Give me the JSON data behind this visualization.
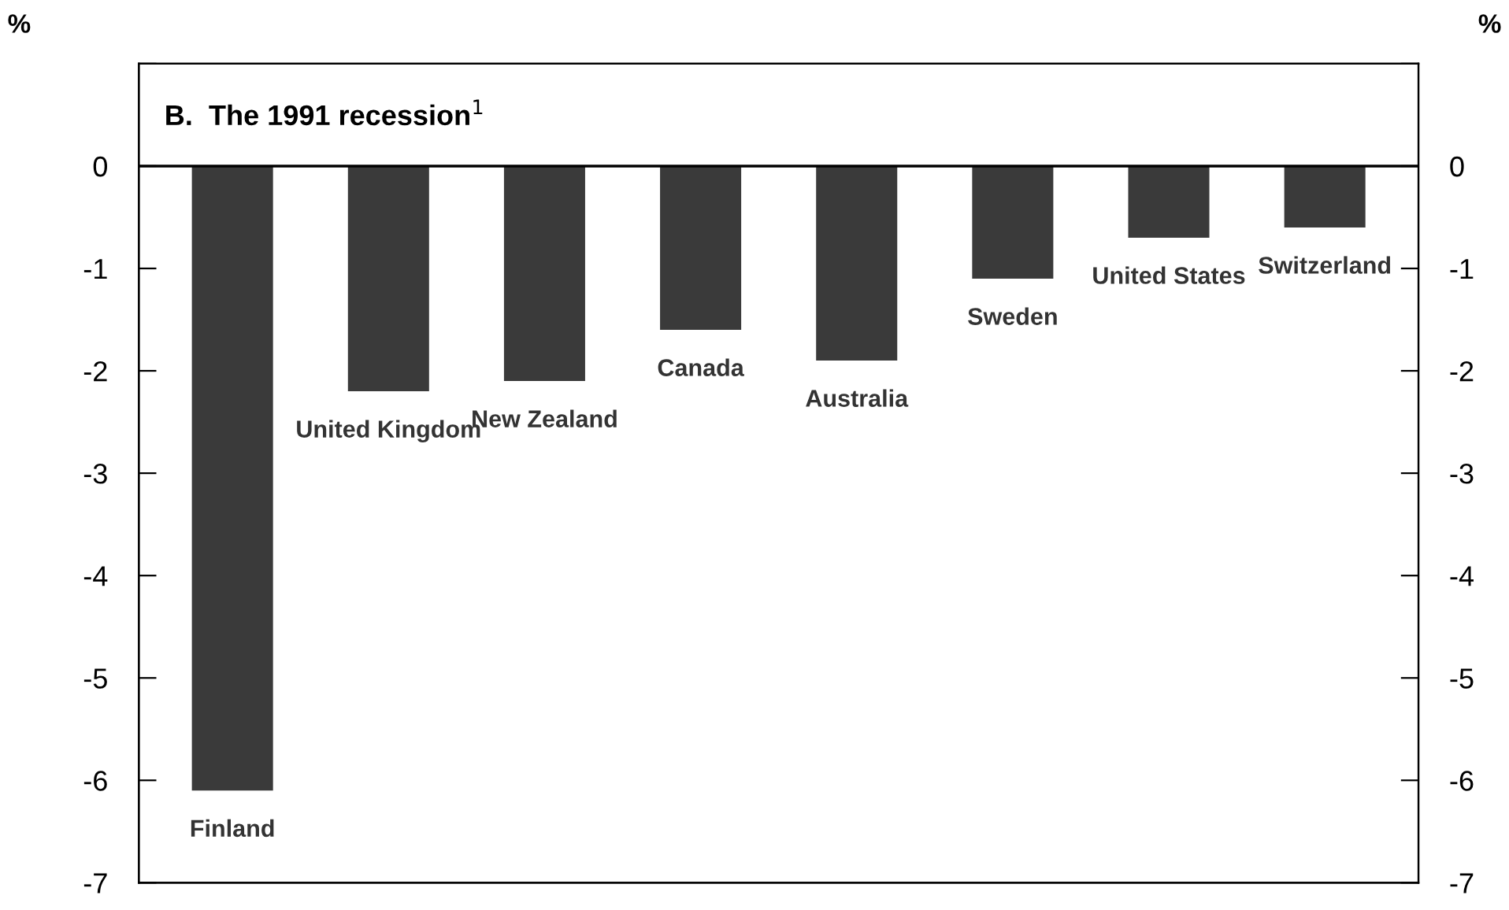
{
  "chart_data": {
    "type": "bar",
    "title": "B.  The 1991 recession$^{1}$",
    "ylabel": "%",
    "y2label": "%",
    "categories": [
      "Finland",
      "United Kingdom",
      "New Zealand",
      "Canada",
      "Australia",
      "Sweden",
      "United States",
      "Switzerland"
    ],
    "values": [
      -6.1,
      -2.2,
      -2.1,
      -1.6,
      -1.9,
      -1.1,
      -0.7,
      -0.6
    ],
    "color": "#3a3a3a",
    "ylim": [
      -7,
      1
    ],
    "yticks": [
      {
        "value": 1,
        "label": null
      },
      0,
      -1,
      -2,
      -3,
      -4,
      -5,
      -6,
      -7
    ],
    "y2lim": [
      -7,
      1
    ],
    "y2ticks": [
      {
        "value": 1,
        "label": null
      },
      0,
      -1,
      -2,
      -3,
      -4,
      -5,
      -6,
      -7
    ],
    "ref_lines": [
      {
        "axis": "y",
        "value": 0,
        "color": "#000000"
      }
    ],
    "tick_labels": "y",
    "grid": false,
    "legend": false
  }
}
